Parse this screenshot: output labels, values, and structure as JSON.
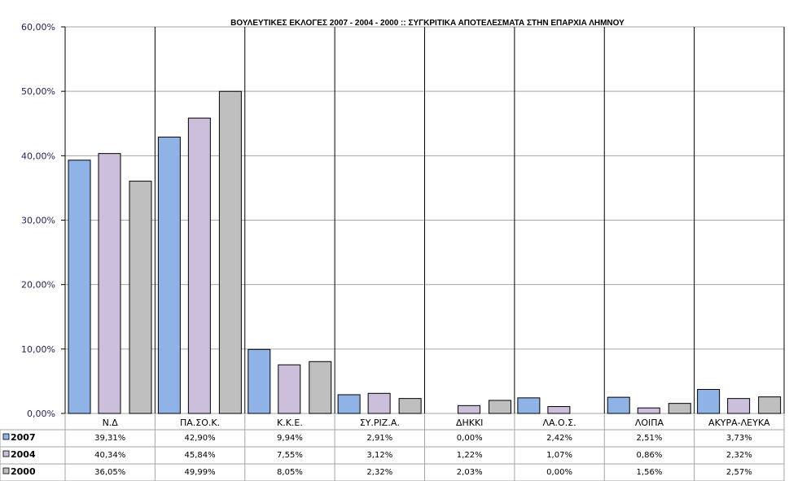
{
  "chart_data": {
    "type": "bar",
    "title": "ΒΟΥΛΕΥΤΙΚΕΣ ΕΚΛΟΓΕΣ 2007 - 2004 - 2000 :: ΣΥΓΚΡΙΤΙΚΑ ΑΠΟΤΕΛΕΣΜΑΤΑ ΣΤΗΝ ΕΠΑΡΧΙΑ ΛΗΜΝΟΥ",
    "categories": [
      "Ν.Δ",
      "ΠΑ.ΣΟ.Κ.",
      "Κ.Κ.Ε.",
      "ΣΥ.ΡΙΖ.Α.",
      "ΔΗΚΚΙ",
      "ΛΑ.Ο.Σ.",
      "ΛΟΙΠΑ",
      "ΑΚΥΡΑ-ΛΕΥΚΑ"
    ],
    "series": [
      {
        "name": "2007",
        "values": [
          39.31,
          42.9,
          9.94,
          2.91,
          0.0,
          2.42,
          2.51,
          3.73
        ],
        "labels": [
          "39,31%",
          "42,90%",
          "9,94%",
          "2,91%",
          "0,00%",
          "2,42%",
          "2,51%",
          "3,73%"
        ],
        "color": "#8fb3e6"
      },
      {
        "name": "2004",
        "values": [
          40.34,
          45.84,
          7.55,
          3.12,
          1.22,
          1.07,
          0.86,
          2.32
        ],
        "labels": [
          "40,34%",
          "45,84%",
          "7,55%",
          "3,12%",
          "1,22%",
          "1,07%",
          "0,86%",
          "2,32%"
        ],
        "color": "#cbbfdc"
      },
      {
        "name": "2000",
        "values": [
          36.05,
          49.99,
          8.05,
          2.32,
          2.03,
          0.0,
          1.56,
          2.57
        ],
        "labels": [
          "36,05%",
          "49,99%",
          "8,05%",
          "2,32%",
          "2,03%",
          "0,00%",
          "1,56%",
          "2,57%"
        ],
        "color": "#bfbfbf"
      }
    ],
    "ylim": [
      0,
      60
    ],
    "yticks": [
      "0,00%",
      "10,00%",
      "20,00%",
      "30,00%",
      "40,00%",
      "50,00%",
      "60,00%"
    ],
    "grid": true,
    "legend": "data-table"
  }
}
